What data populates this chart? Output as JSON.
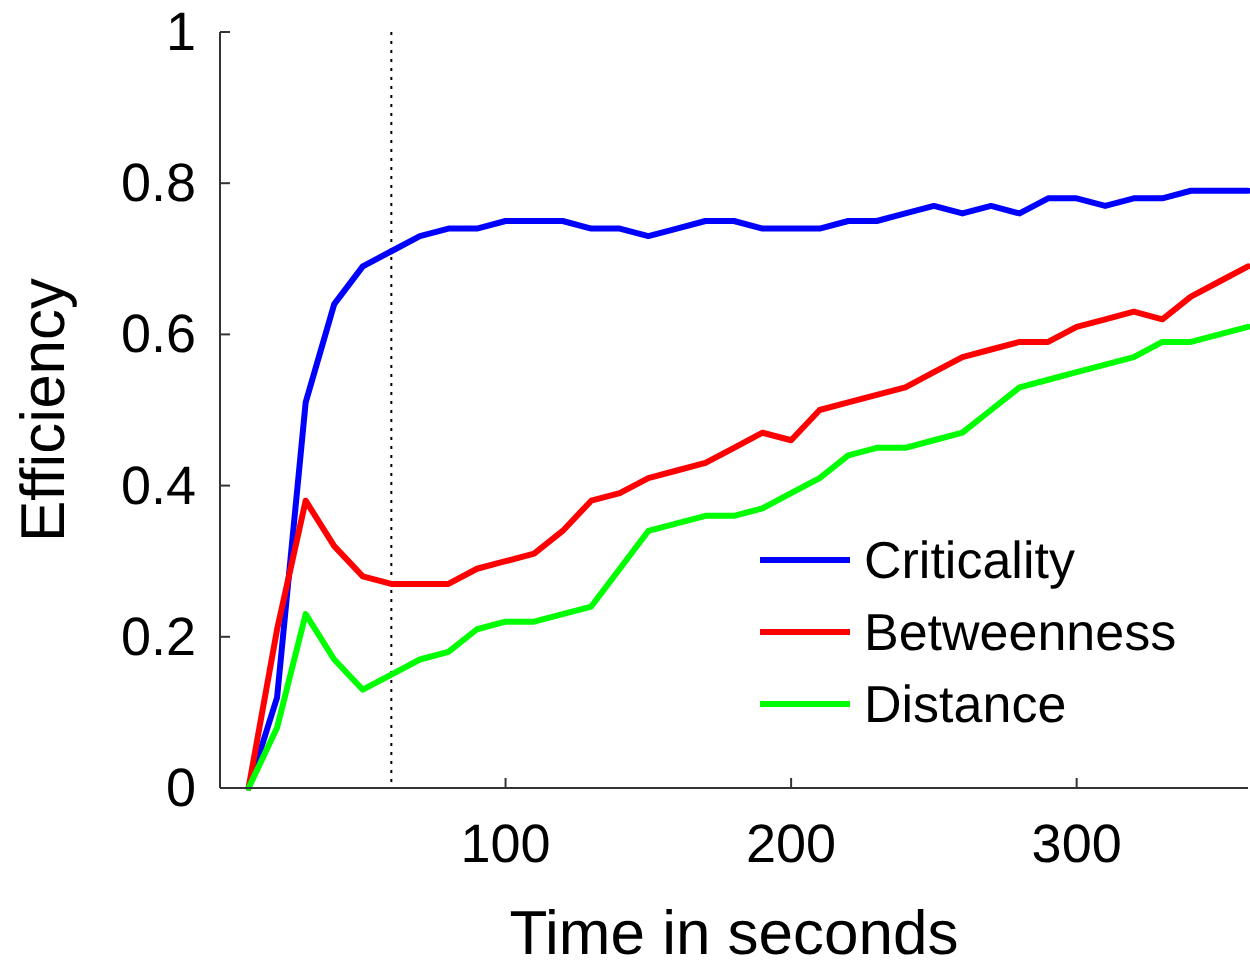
{
  "chart_data": {
    "type": "line",
    "xlabel": "Time in seconds",
    "ylabel": "Efficiency",
    "x": [
      10,
      20,
      30,
      40,
      50,
      60,
      70,
      80,
      90,
      100,
      110,
      120,
      130,
      140,
      150,
      160,
      170,
      180,
      190,
      200,
      210,
      220,
      230,
      240,
      250,
      260,
      270,
      280,
      290,
      300,
      310,
      320,
      330,
      340,
      350,
      360
    ],
    "series": [
      {
        "name": "Criticality",
        "color": "#0000ff",
        "values": [
          0,
          0.12,
          0.51,
          0.64,
          0.69,
          0.71,
          0.73,
          0.74,
          0.74,
          0.75,
          0.75,
          0.75,
          0.74,
          0.74,
          0.73,
          0.74,
          0.75,
          0.75,
          0.74,
          0.74,
          0.74,
          0.75,
          0.75,
          0.76,
          0.77,
          0.76,
          0.77,
          0.76,
          0.78,
          0.78,
          0.77,
          0.78,
          0.78,
          0.79,
          0.79,
          0.79
        ]
      },
      {
        "name": "Betweenness",
        "color": "#ff0000",
        "values": [
          0,
          0.21,
          0.38,
          0.32,
          0.28,
          0.27,
          0.27,
          0.27,
          0.29,
          0.3,
          0.31,
          0.34,
          0.38,
          0.39,
          0.41,
          0.42,
          0.43,
          0.45,
          0.47,
          0.46,
          0.5,
          0.51,
          0.52,
          0.53,
          0.55,
          0.57,
          0.58,
          0.59,
          0.59,
          0.61,
          0.62,
          0.63,
          0.62,
          0.65,
          0.67,
          0.69
        ]
      },
      {
        "name": "Distance",
        "color": "#00ff00",
        "values": [
          0,
          0.08,
          0.23,
          0.17,
          0.13,
          0.15,
          0.17,
          0.18,
          0.21,
          0.22,
          0.22,
          0.23,
          0.24,
          0.29,
          0.34,
          0.35,
          0.36,
          0.36,
          0.37,
          0.39,
          0.41,
          0.44,
          0.45,
          0.45,
          0.46,
          0.47,
          0.5,
          0.53,
          0.54,
          0.55,
          0.56,
          0.57,
          0.59,
          0.59,
          0.6,
          0.61
        ]
      }
    ],
    "xlim": [
      0,
      360
    ],
    "xticks": [
      100,
      200,
      300
    ],
    "ylim": [
      0,
      1
    ],
    "yticks": [
      0,
      0.2,
      0.4,
      0.6,
      0.8,
      1
    ],
    "ref_lines": [
      {
        "axis": "x",
        "value": 60,
        "line_style": "dotted",
        "color": "#000000"
      }
    ],
    "legend": "bottom right",
    "grid": false,
    "marker": "none",
    "line_style": "solid"
  }
}
